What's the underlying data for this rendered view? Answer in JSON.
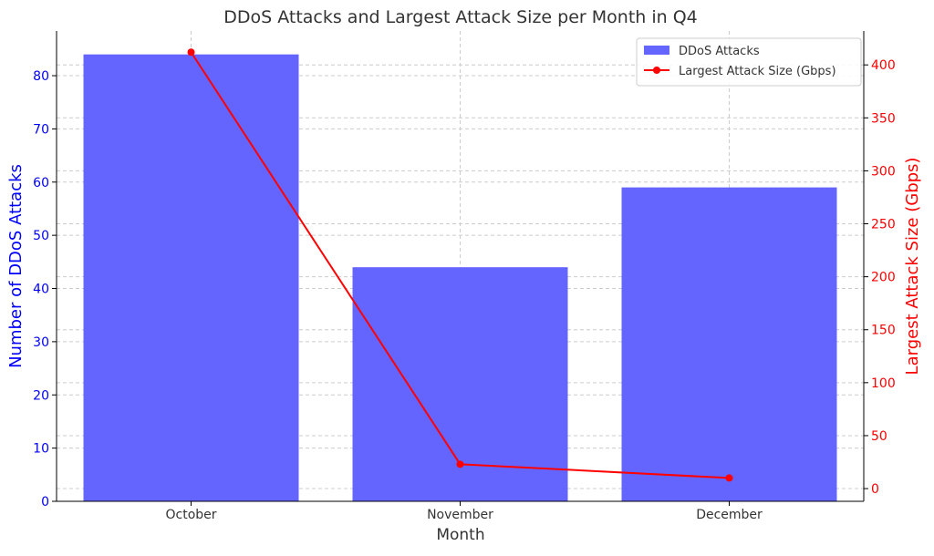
{
  "chart_data": {
    "type": "bar",
    "title": "DDoS Attacks and Largest Attack Size per Month in Q4",
    "xlabel": "Month",
    "ylabel": "Number of DDoS Attacks",
    "y2label": "Largest Attack Size (Gbps)",
    "categories": [
      "October",
      "November",
      "December"
    ],
    "ylim": [
      0,
      88.4
    ],
    "y2lim": [
      -12,
      432
    ],
    "yticks": [
      0,
      10,
      20,
      30,
      40,
      50,
      60,
      70,
      80
    ],
    "y2ticks": [
      0,
      50,
      100,
      150,
      200,
      250,
      300,
      350,
      400
    ],
    "grid": true,
    "legend_position": "top-right",
    "series": [
      {
        "name": "DDoS Attacks",
        "type": "bar",
        "axis": "left",
        "color": "#6464ff",
        "values": [
          84,
          44,
          59
        ]
      },
      {
        "name": "Largest Attack Size (Gbps)",
        "type": "line",
        "axis": "right",
        "color": "#ff0000",
        "marker": "circle",
        "values": [
          412,
          23,
          10
        ]
      }
    ],
    "colors": {
      "left_axis": "#0000ff",
      "right_axis": "#ff0000"
    }
  }
}
